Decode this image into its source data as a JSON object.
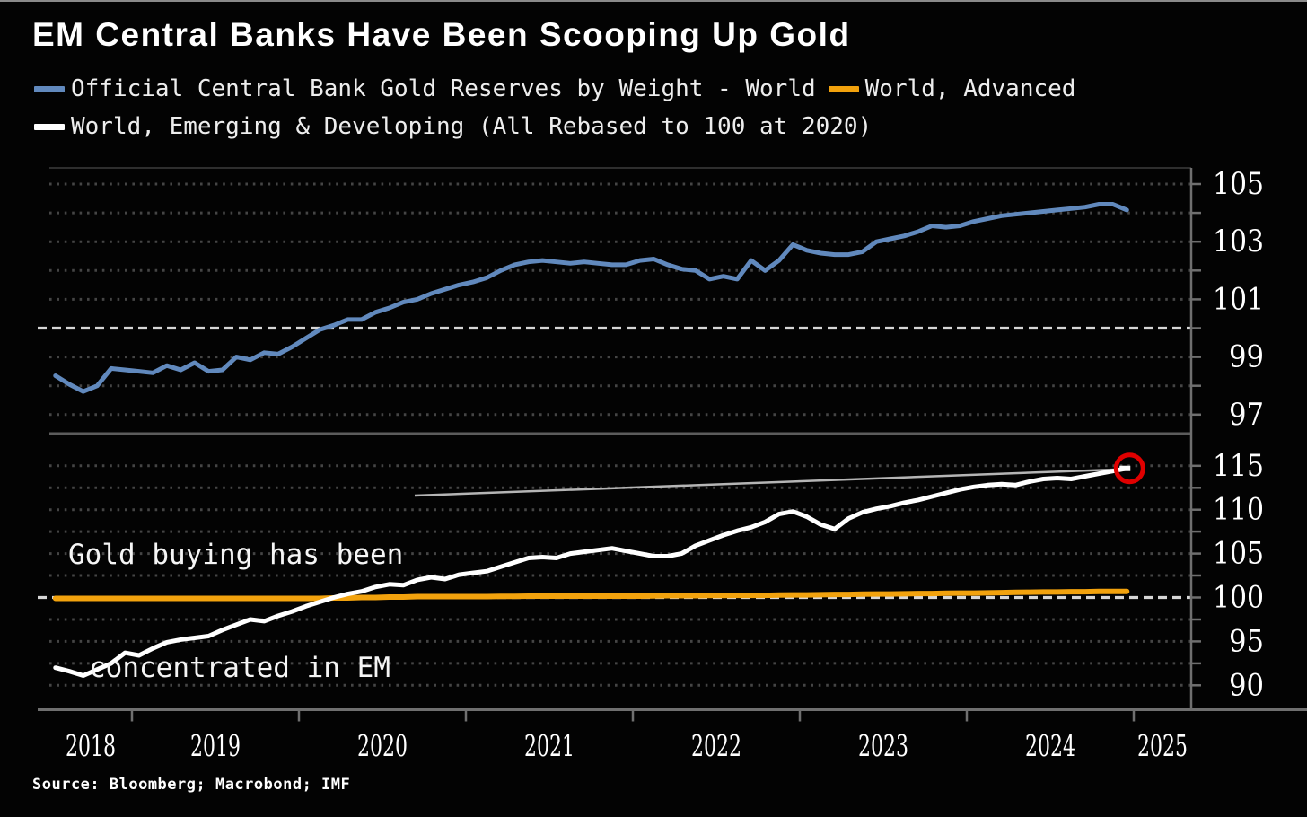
{
  "title": "EM Central Banks Have Been Scooping Up Gold",
  "legend": [
    {
      "label": "Official Central Bank Gold Reserves by Weight - World",
      "color": "#6189bd"
    },
    {
      "label": "World, Advanced",
      "color": "#f2a20d"
    },
    {
      "label": "World, Emerging & Developing (All Rebased to 100 at 2020)",
      "color": "#ffffff"
    }
  ],
  "annotation": {
    "line1": "Gold buying has been",
    "line2": "concentrated in EM"
  },
  "source": "Source: Bloomberg; Macrobond; IMF",
  "colors": {
    "background": "#030303",
    "blue_line": "#6189bd",
    "orange_line": "#f2a20d",
    "white_line": "#ffffff",
    "grid_dotted": "#454545",
    "grid_baseline": "#d6d6d6",
    "frame": "#6f6f6f",
    "tick_label": "#ffffff",
    "endpoint_circle": "#e00000",
    "callout_line": "#b5b5b5"
  },
  "chart_data": {
    "type": "line",
    "title": "EM Central Banks Have Been Scooping Up Gold",
    "x_unit": "month",
    "x_start": {
      "year": 2018,
      "month": 7
    },
    "x_end": {
      "year": 2024,
      "month": 12
    },
    "x_tick_years": [
      "2018",
      "2019",
      "2020",
      "2021",
      "2022",
      "2023",
      "2024",
      "2025"
    ],
    "rebase_note": "All Rebased to 100 at 2020",
    "grid": "dotted horizontal, baseline 100 highlighted dashed",
    "legend_position": "top",
    "panels": [
      {
        "id": "top",
        "ylim": [
          96.4,
          105.6
        ],
        "ytick_labels": [
          "105",
          "103",
          "101",
          "99",
          "97"
        ],
        "ytick_values": [
          105,
          103,
          101,
          99,
          97
        ],
        "grid_values": [
          97,
          98,
          99,
          100,
          101,
          102,
          103,
          104,
          105
        ],
        "baseline": 100,
        "series": [
          {
            "name": "Official Central Bank Gold Reserves by Weight - World",
            "color": "#6189bd",
            "width": 5,
            "values": [
              98.35,
              98.05,
              97.8,
              98.0,
              98.6,
              98.55,
              98.5,
              98.45,
              98.7,
              98.55,
              98.8,
              98.5,
              98.55,
              99.0,
              98.9,
              99.15,
              99.1,
              99.35,
              99.65,
              99.95,
              100.1,
              100.3,
              100.3,
              100.55,
              100.7,
              100.9,
              101.0,
              101.2,
              101.35,
              101.5,
              101.6,
              101.75,
              102.0,
              102.2,
              102.3,
              102.35,
              102.3,
              102.25,
              102.3,
              102.25,
              102.2,
              102.2,
              102.35,
              102.4,
              102.2,
              102.05,
              102.0,
              101.7,
              101.8,
              101.7,
              102.35,
              102.0,
              102.35,
              102.9,
              102.7,
              102.6,
              102.55,
              102.55,
              102.65,
              103.0,
              103.1,
              103.2,
              103.35,
              103.55,
              103.5,
              103.55,
              103.7,
              103.8,
              103.9,
              103.95,
              104.0,
              104.05,
              104.1,
              104.15,
              104.2,
              104.3,
              104.3,
              104.1
            ]
          }
        ]
      },
      {
        "id": "bottom",
        "ylim": [
          87.4,
          118.1
        ],
        "ytick_labels": [
          "115",
          "110",
          "105",
          "100",
          "95",
          "90"
        ],
        "ytick_values": [
          115,
          110,
          105,
          100,
          95,
          90
        ],
        "grid_values": [
          90,
          92.5,
          95,
          97.5,
          100,
          102.5,
          105,
          107.5,
          110,
          112.5,
          115
        ],
        "baseline": 100,
        "series": [
          {
            "name": "World, Advanced",
            "color": "#f2a20d",
            "width": 6,
            "values": [
              99.9,
              99.9,
              99.9,
              99.9,
              99.9,
              99.9,
              99.9,
              99.9,
              99.9,
              99.9,
              99.9,
              99.9,
              99.9,
              99.9,
              99.9,
              99.9,
              99.9,
              99.9,
              99.9,
              99.9,
              99.95,
              99.95,
              100.0,
              100.0,
              100.05,
              100.05,
              100.1,
              100.1,
              100.1,
              100.1,
              100.1,
              100.1,
              100.12,
              100.12,
              100.15,
              100.15,
              100.15,
              100.15,
              100.15,
              100.15,
              100.15,
              100.15,
              100.15,
              100.18,
              100.2,
              100.2,
              100.2,
              100.22,
              100.22,
              100.25,
              100.25,
              100.25,
              100.28,
              100.3,
              100.3,
              100.32,
              100.35,
              100.35,
              100.38,
              100.4,
              100.4,
              100.42,
              100.45,
              100.45,
              100.48,
              100.5,
              100.5,
              100.52,
              100.55,
              100.58,
              100.6,
              100.62,
              100.62,
              100.65,
              100.65,
              100.68,
              100.7,
              100.7
            ]
          },
          {
            "name": "World, Emerging & Developing",
            "color": "#ffffff",
            "width": 5,
            "endpoint_highlight": true,
            "values": [
              92.0,
              91.6,
              91.1,
              91.8,
              92.5,
              93.7,
              93.4,
              94.2,
              94.9,
              95.2,
              95.4,
              95.6,
              96.3,
              96.9,
              97.5,
              97.3,
              97.9,
              98.4,
              99.0,
              99.5,
              100.0,
              100.4,
              100.7,
              101.2,
              101.5,
              101.4,
              102.0,
              102.3,
              102.1,
              102.6,
              102.8,
              103.0,
              103.5,
              104.0,
              104.5,
              104.6,
              104.5,
              105.0,
              105.2,
              105.4,
              105.6,
              105.3,
              105.0,
              104.7,
              104.7,
              105.0,
              105.9,
              106.5,
              107.1,
              107.6,
              108.0,
              108.6,
              109.5,
              109.8,
              109.2,
              108.3,
              107.8,
              109.0,
              109.7,
              110.1,
              110.4,
              110.8,
              111.1,
              111.5,
              111.9,
              112.3,
              112.6,
              112.8,
              112.9,
              112.8,
              113.2,
              113.5,
              113.6,
              113.5,
              113.8,
              114.1,
              114.4,
              114.7
            ]
          }
        ]
      }
    ]
  }
}
